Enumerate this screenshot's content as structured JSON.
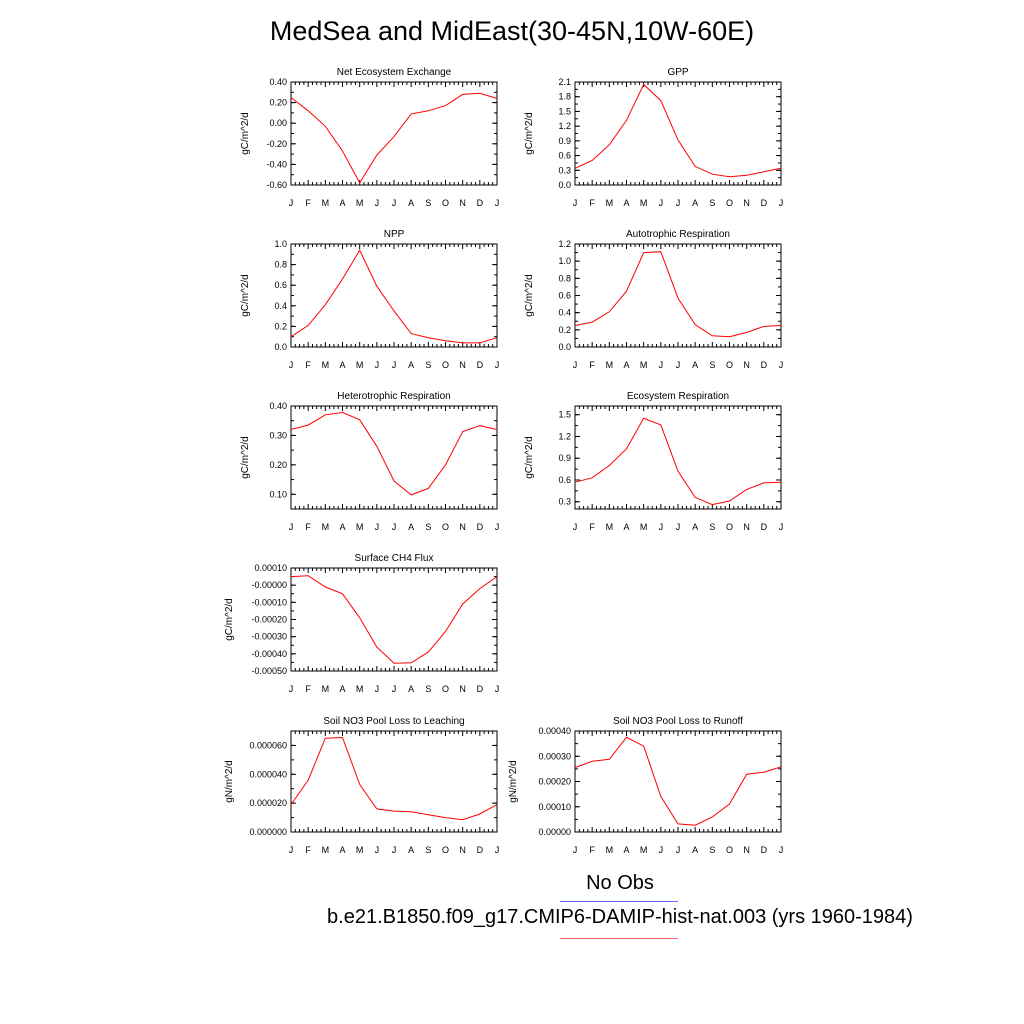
{
  "figure": {
    "title": "MedSea and MidEast(30-45N,10W-60E)"
  },
  "legend": {
    "entries": [
      {
        "label": "No Obs",
        "color": "#6666ff"
      },
      {
        "label": "b.e21.B1850.f09_g17.CMIP6-DAMIP-hist-nat.003 (yrs 1960-1984)",
        "color": "#ff6666"
      }
    ]
  },
  "chart_data": [
    {
      "type": "line",
      "title": "Net Ecosystem Exchange",
      "ylabel": "gC/m^2/d",
      "categories": [
        "J",
        "F",
        "M",
        "A",
        "M",
        "J",
        "J",
        "A",
        "S",
        "O",
        "N",
        "D",
        "J"
      ],
      "ylim": [
        -0.6,
        0.4
      ],
      "yticks": [
        "0.40",
        "0.20",
        "0.00",
        "-0.20",
        "-0.40",
        "-0.60"
      ],
      "series": [
        {
          "color": "#ff0000",
          "values": [
            0.25,
            0.12,
            -0.03,
            -0.27,
            -0.58,
            -0.31,
            -0.13,
            0.09,
            0.12,
            0.17,
            0.28,
            0.29,
            0.24
          ]
        }
      ]
    },
    {
      "type": "line",
      "title": "GPP",
      "ylabel": "gC/m^2/d",
      "categories": [
        "J",
        "F",
        "M",
        "A",
        "M",
        "J",
        "J",
        "A",
        "S",
        "O",
        "N",
        "D",
        "J"
      ],
      "ylim": [
        0.0,
        2.1
      ],
      "yticks": [
        "2.1",
        "1.8",
        "1.5",
        "1.2",
        "0.9",
        "0.6",
        "0.3",
        "0.0"
      ],
      "series": [
        {
          "color": "#ff0000",
          "values": [
            0.34,
            0.5,
            0.82,
            1.32,
            2.05,
            1.72,
            0.92,
            0.38,
            0.22,
            0.17,
            0.2,
            0.27,
            0.34
          ]
        }
      ]
    },
    {
      "type": "line",
      "title": "NPP",
      "ylabel": "gC/m^2/d",
      "categories": [
        "J",
        "F",
        "M",
        "A",
        "M",
        "J",
        "J",
        "A",
        "S",
        "O",
        "N",
        "D",
        "J"
      ],
      "ylim": [
        0.0,
        1.0
      ],
      "yticks": [
        "1.0",
        "0.8",
        "0.6",
        "0.4",
        "0.2",
        "0.0"
      ],
      "series": [
        {
          "color": "#ff0000",
          "values": [
            0.1,
            0.21,
            0.41,
            0.66,
            0.94,
            0.59,
            0.35,
            0.13,
            0.09,
            0.06,
            0.04,
            0.04,
            0.09
          ]
        }
      ]
    },
    {
      "type": "line",
      "title": "Autotrophic Respiration",
      "ylabel": "gC/m^2/d",
      "categories": [
        "J",
        "F",
        "M",
        "A",
        "M",
        "J",
        "J",
        "A",
        "S",
        "O",
        "N",
        "D",
        "J"
      ],
      "ylim": [
        0.0,
        1.2
      ],
      "yticks": [
        "1.2",
        "1.0",
        "0.8",
        "0.6",
        "0.4",
        "0.2",
        "0.0"
      ],
      "series": [
        {
          "color": "#ff0000",
          "values": [
            0.25,
            0.29,
            0.41,
            0.65,
            1.1,
            1.11,
            0.57,
            0.26,
            0.13,
            0.12,
            0.17,
            0.24,
            0.25
          ]
        }
      ]
    },
    {
      "type": "line",
      "title": "Heterotrophic Respiration",
      "ylabel": "gC/m^2/d",
      "categories": [
        "J",
        "F",
        "M",
        "A",
        "M",
        "J",
        "J",
        "A",
        "S",
        "O",
        "N",
        "D",
        "J"
      ],
      "ylim": [
        0.05,
        0.4
      ],
      "yticks": [
        "0.40",
        "0.30",
        "0.20",
        "0.10"
      ],
      "yticks_values": [
        0.4,
        0.3,
        0.2,
        0.1
      ],
      "series": [
        {
          "color": "#ff0000",
          "values": [
            0.32,
            0.335,
            0.37,
            0.378,
            0.353,
            0.263,
            0.145,
            0.098,
            0.12,
            0.2,
            0.313,
            0.333,
            0.32
          ]
        }
      ]
    },
    {
      "type": "line",
      "title": "Ecosystem Respiration",
      "ylabel": "gC/m^2/d",
      "categories": [
        "J",
        "F",
        "M",
        "A",
        "M",
        "J",
        "J",
        "A",
        "S",
        "O",
        "N",
        "D",
        "J"
      ],
      "ylim": [
        0.2,
        1.62
      ],
      "yticks": [
        "1.5",
        "1.2",
        "0.9",
        "0.6",
        "0.3"
      ],
      "yticks_values": [
        1.5,
        1.2,
        0.9,
        0.6,
        0.3
      ],
      "series": [
        {
          "color": "#ff0000",
          "values": [
            0.57,
            0.63,
            0.8,
            1.03,
            1.45,
            1.36,
            0.72,
            0.36,
            0.26,
            0.31,
            0.47,
            0.56,
            0.57
          ]
        }
      ]
    },
    {
      "type": "line",
      "title": "Surface CH4 Flux",
      "ylabel": "gC/m^2/d",
      "categories": [
        "J",
        "F",
        "M",
        "A",
        "M",
        "J",
        "J",
        "A",
        "S",
        "O",
        "N",
        "D",
        "J"
      ],
      "ylim": [
        -0.0005,
        0.0001
      ],
      "yticks": [
        "0.00010",
        "-0.00000",
        "-0.00010",
        "-0.00020",
        "-0.00030",
        "-0.00040",
        "-0.00050"
      ],
      "series": [
        {
          "color": "#ff0000",
          "values": [
            5e-05,
            5.5e-05,
            -1e-05,
            -5e-05,
            -0.00019,
            -0.00036,
            -0.000455,
            -0.000452,
            -0.00039,
            -0.00027,
            -0.00011,
            -2e-05,
            5e-05
          ]
        }
      ]
    },
    {
      "type": "line",
      "title": "Soil NO3 Pool Loss to Leaching",
      "ylabel": "gN/m^2/d",
      "categories": [
        "J",
        "F",
        "M",
        "A",
        "M",
        "J",
        "J",
        "A",
        "S",
        "O",
        "N",
        "D",
        "J"
      ],
      "ylim": [
        0.0,
        7e-05
      ],
      "yticks": [
        "0.000060",
        "0.000040",
        "0.000020",
        "0.000000"
      ],
      "yticks_values": [
        6e-05,
        4e-05,
        2e-05,
        0.0
      ],
      "series": [
        {
          "color": "#ff0000",
          "values": [
            1.9e-05,
            3.6e-05,
            6.5e-05,
            6.55e-05,
            3.3e-05,
            1.6e-05,
            1.45e-05,
            1.4e-05,
            1.2e-05,
            1e-05,
            8.5e-06,
            1.25e-05,
            1.9e-05
          ]
        }
      ]
    },
    {
      "type": "line",
      "title": "Soil NO3 Pool Loss to Runoff",
      "ylabel": "gN/m^2/d",
      "categories": [
        "J",
        "F",
        "M",
        "A",
        "M",
        "J",
        "J",
        "A",
        "S",
        "O",
        "N",
        "D",
        "J"
      ],
      "ylim": [
        0.0,
        0.0004
      ],
      "yticks": [
        "0.00040",
        "0.00030",
        "0.00020",
        "0.00010",
        "0.00000"
      ],
      "series": [
        {
          "color": "#ff0000",
          "values": [
            0.000255,
            0.00028,
            0.000288,
            0.000375,
            0.00034,
            0.000141,
            3.2e-05,
            2.7e-05,
            6e-05,
            0.000111,
            0.000229,
            0.000237,
            0.000258
          ]
        }
      ]
    }
  ]
}
